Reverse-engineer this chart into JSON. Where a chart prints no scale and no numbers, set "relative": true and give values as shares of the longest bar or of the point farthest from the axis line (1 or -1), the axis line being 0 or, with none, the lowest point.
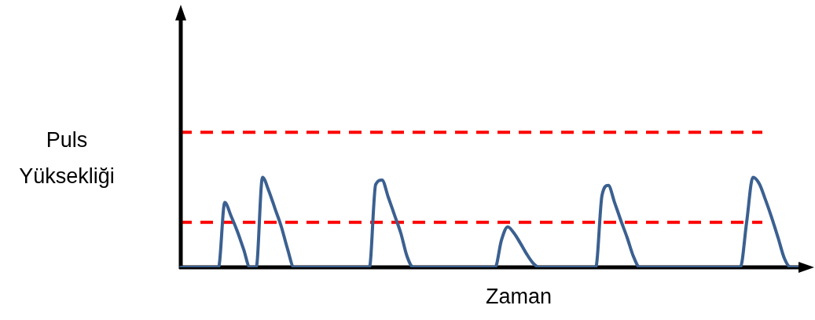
{
  "chart_data": {
    "type": "line",
    "relative": true,
    "xlabel": "Zaman",
    "ylabel": "Puls Yüksekliği",
    "tick_labels": false,
    "legend": false,
    "marker": "none",
    "line_style": "solid",
    "categories": [
      null,
      null,
      null,
      null,
      null,
      null,
      null,
      null,
      null,
      null,
      null,
      null,
      null,
      null,
      null,
      null,
      null,
      null,
      null,
      null,
      null,
      null,
      null,
      null,
      null,
      null,
      null,
      null,
      null,
      null,
      null,
      null,
      null,
      null,
      null,
      null,
      null,
      null,
      null,
      null,
      null,
      null,
      null,
      null,
      null,
      null,
      null,
      null,
      null,
      null,
      null,
      null,
      null,
      null,
      null,
      null,
      null,
      null,
      null,
      null,
      null,
      null,
      null,
      null,
      null,
      null,
      null,
      null,
      null,
      null,
      null,
      null,
      null,
      null,
      null,
      null,
      null,
      null,
      null,
      null,
      null,
      null,
      null,
      null,
      null,
      null,
      null,
      null,
      null,
      null,
      null,
      null,
      null,
      null,
      null,
      null,
      null,
      null,
      null,
      null,
      null
    ],
    "series": [
      {
        "color": "#3b6090",
        "values": [
          0,
          0,
          0,
          0,
          0,
          0,
          0,
          0.72,
          0.57,
          0.4,
          0.2,
          0,
          0,
          1,
          0.85,
          0.65,
          0.45,
          0.2,
          0,
          0,
          0,
          0,
          0,
          0,
          0,
          0,
          0,
          0,
          0,
          0,
          0,
          0.92,
          0.97,
          0.78,
          0.58,
          0.38,
          0.12,
          0,
          0,
          0,
          0,
          0,
          0,
          0,
          0,
          0,
          0,
          0,
          0,
          0,
          0,
          0.3,
          0.45,
          0.38,
          0.27,
          0.15,
          0.05,
          0,
          0,
          0,
          0,
          0,
          0,
          0,
          0,
          0,
          0,
          0.8,
          0.91,
          0.72,
          0.52,
          0.33,
          0.12,
          0,
          0,
          0,
          0,
          0,
          0,
          0,
          0,
          0,
          0,
          0,
          0,
          0,
          0,
          0,
          0,
          0,
          0.5,
          1,
          0.93,
          0.75,
          0.55,
          0.33,
          0.1,
          0,
          0,
          0,
          0
        ]
      }
    ],
    "ref_lines": [
      {
        "axis": "y",
        "value": 1.5,
        "color": "#ff0000",
        "line_style": "dashed"
      },
      {
        "axis": "y",
        "value": 0.5,
        "color": "#ff0000",
        "line_style": "dashed"
      }
    ]
  }
}
